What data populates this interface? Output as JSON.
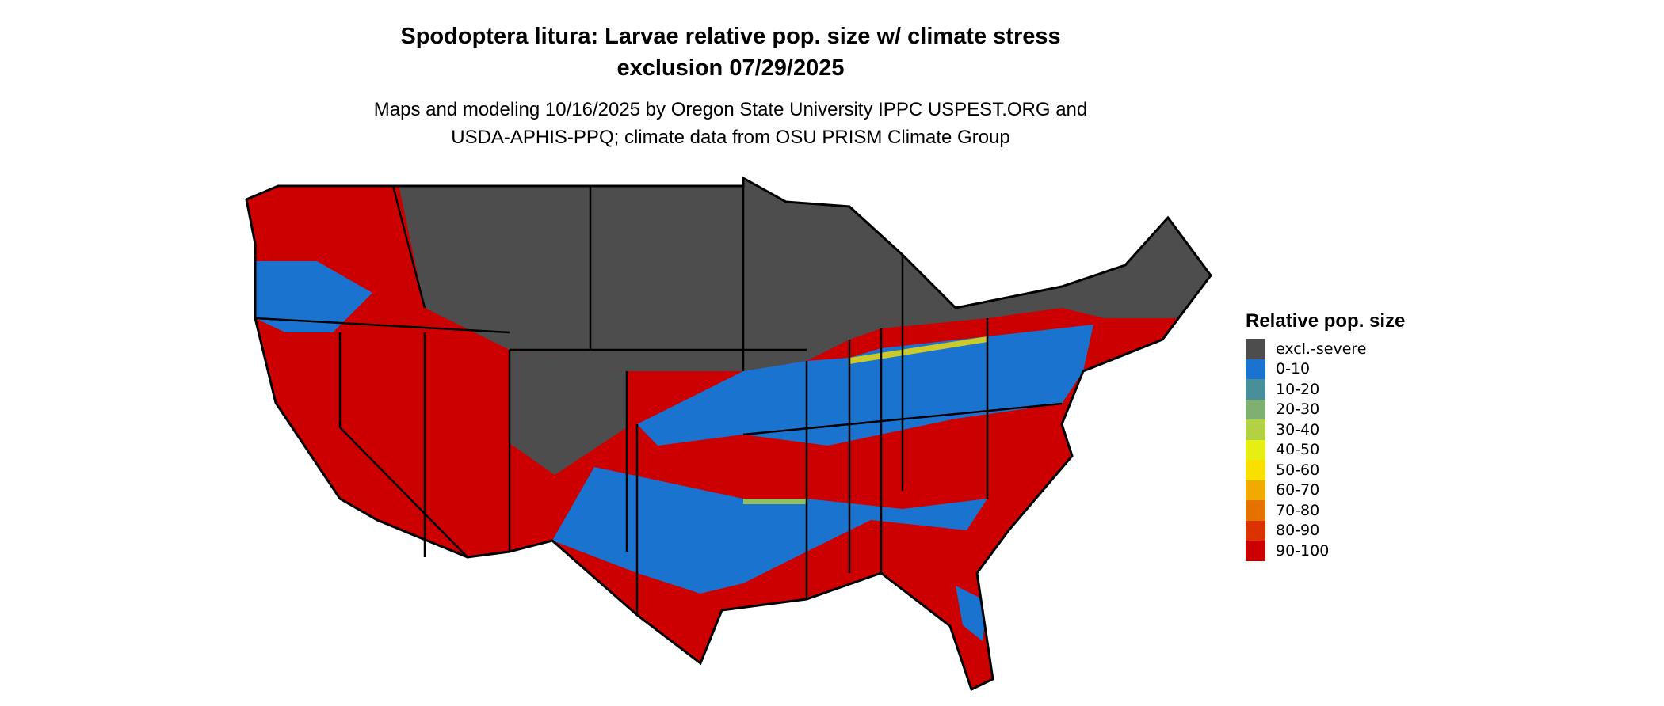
{
  "title_line1": "Spodoptera litura: Larvae relative pop. size w/ climate stress",
  "title_line2": "exclusion 07/29/2025",
  "subtitle_line1": "Maps and modeling 10/16/2025 by Oregon State University IPPC USPEST.ORG and",
  "subtitle_line2": "USDA-APHIS-PPQ; climate data from OSU PRISM Climate Group",
  "map_region": "Contiguous United States",
  "legend": {
    "title": "Relative pop. size",
    "items": [
      {
        "label": "excl.-severe",
        "color": "#4d4d4d"
      },
      {
        "label": "0-10",
        "color": "#1a73cf"
      },
      {
        "label": "10-20",
        "color": "#488f9a"
      },
      {
        "label": "20-30",
        "color": "#7db071"
      },
      {
        "label": "30-40",
        "color": "#b2d145"
      },
      {
        "label": "40-50",
        "color": "#e6ef14"
      },
      {
        "label": "50-60",
        "color": "#f9e000"
      },
      {
        "label": "60-70",
        "color": "#f0aa00"
      },
      {
        "label": "70-80",
        "color": "#e57200"
      },
      {
        "label": "80-90",
        "color": "#db3300"
      },
      {
        "label": "90-100",
        "color": "#cc0000"
      }
    ]
  }
}
